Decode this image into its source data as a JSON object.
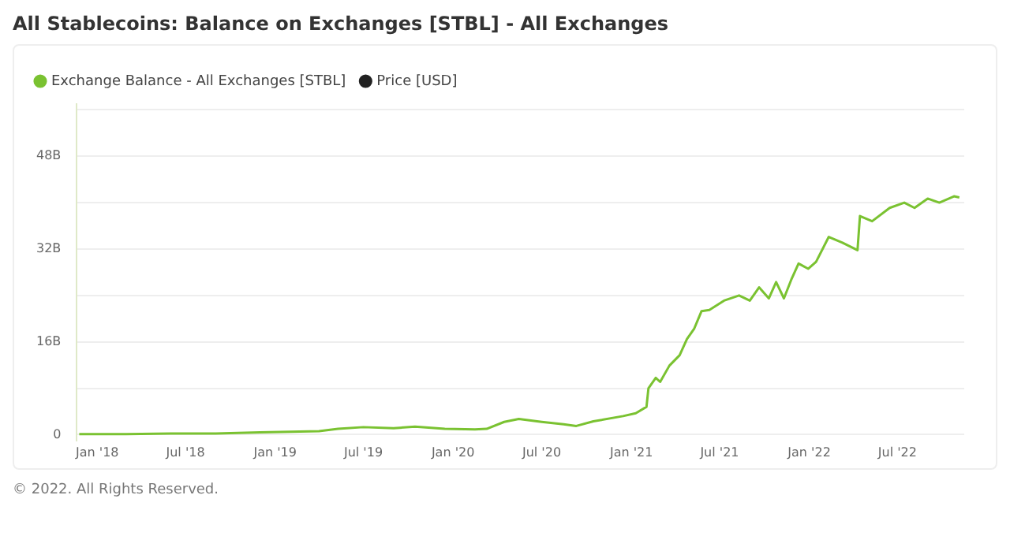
{
  "chart_data": {
    "type": "line",
    "title": "All Stablecoins: Balance on Exchanges [STBL] - All Exchanges",
    "annotations": [
      "© 2022. All Rights Reserved."
    ],
    "x": [
      "2017-11-25",
      "2018-03-01",
      "2018-06-01",
      "2018-09-01",
      "2018-12-01",
      "2019-02-01",
      "2019-04-01",
      "2019-05-10",
      "2019-07-01",
      "2019-09-01",
      "2019-10-15",
      "2019-12-15",
      "2020-02-15",
      "2020-03-10",
      "2020-04-15",
      "2020-05-15",
      "2020-07-01",
      "2020-08-15",
      "2020-09-10",
      "2020-10-15",
      "2020-12-15",
      "2021-01-10",
      "2021-02-01",
      "2021-02-05",
      "2021-02-20",
      "2021-03-01",
      "2021-03-20",
      "2021-04-10",
      "2021-04-25",
      "2021-05-10",
      "2021-05-25",
      "2021-06-10",
      "2021-07-10",
      "2021-08-10",
      "2021-09-01",
      "2021-09-20",
      "2021-10-10",
      "2021-10-25",
      "2021-11-10",
      "2021-11-25",
      "2021-12-10",
      "2021-12-30",
      "2022-01-15",
      "2022-02-10",
      "2022-03-10",
      "2022-04-10",
      "2022-04-15",
      "2022-05-10",
      "2022-06-15",
      "2022-07-15",
      "2022-08-05",
      "2022-09-01",
      "2022-09-25",
      "2022-10-25",
      "2022-11-05"
    ],
    "series": [
      {
        "name": "Exchange Balance - All Exchanges [STBL]",
        "color": "#7ac231",
        "values": [
          0.1,
          0.1,
          0.2,
          0.2,
          0.4,
          0.5,
          0.6,
          1.0,
          1.3,
          1.1,
          1.4,
          1.0,
          0.9,
          1.0,
          2.2,
          2.7,
          2.2,
          1.8,
          1.5,
          2.3,
          3.2,
          3.7,
          4.8,
          8.0,
          9.8,
          9.1,
          11.9,
          13.7,
          16.5,
          18.3,
          21.3,
          21.5,
          23.1,
          24.0,
          23.1,
          25.4,
          23.5,
          26.3,
          23.5,
          26.7,
          29.5,
          28.6,
          29.8,
          34.1,
          33.1,
          31.8,
          37.7,
          36.8,
          39.1,
          40.0,
          39.1,
          40.7,
          40.0,
          41.1,
          40.9
        ]
      },
      {
        "name": "Price [USD]",
        "color": "#222222",
        "values": [
          null,
          null,
          null,
          null,
          null,
          null,
          null,
          null,
          null,
          null,
          null,
          null,
          null,
          null,
          null,
          null,
          null,
          null,
          null,
          null,
          null,
          null,
          null,
          null,
          null,
          null,
          null,
          null,
          null,
          null,
          null,
          null,
          null,
          null,
          null,
          null,
          null,
          null,
          null,
          null,
          null,
          null,
          null,
          null,
          null,
          null,
          null,
          null,
          null,
          null,
          null,
          null,
          null,
          null,
          null
        ]
      }
    ],
    "xlim": [
      "2017-11-20",
      "2022-11-15"
    ],
    "xticks": [
      {
        "value": "2018-01-01",
        "label": "Jan '18"
      },
      {
        "value": "2018-07-01",
        "label": "Jul '18"
      },
      {
        "value": "2019-01-01",
        "label": "Jan '19"
      },
      {
        "value": "2019-07-01",
        "label": "Jul '19"
      },
      {
        "value": "2020-01-01",
        "label": "Jan '20"
      },
      {
        "value": "2020-07-01",
        "label": "Jul '20"
      },
      {
        "value": "2021-01-01",
        "label": "Jan '21"
      },
      {
        "value": "2021-07-01",
        "label": "Jul '21"
      },
      {
        "value": "2022-01-01",
        "label": "Jan '22"
      },
      {
        "value": "2022-07-01",
        "label": "Jul '22"
      }
    ],
    "ylim": [
      -1,
      57
    ],
    "yticks": [
      0,
      {
        "value": 8,
        "label": null
      },
      {
        "value": 16,
        "label": "16B"
      },
      {
        "value": 24,
        "label": null
      },
      {
        "value": 32,
        "label": "32B"
      },
      {
        "value": 40,
        "label": null
      },
      {
        "value": 48,
        "label": "48B"
      },
      {
        "value": 56,
        "label": null
      }
    ],
    "grid": "y",
    "legend": "top left",
    "marker": "none",
    "line_style": "solid"
  }
}
